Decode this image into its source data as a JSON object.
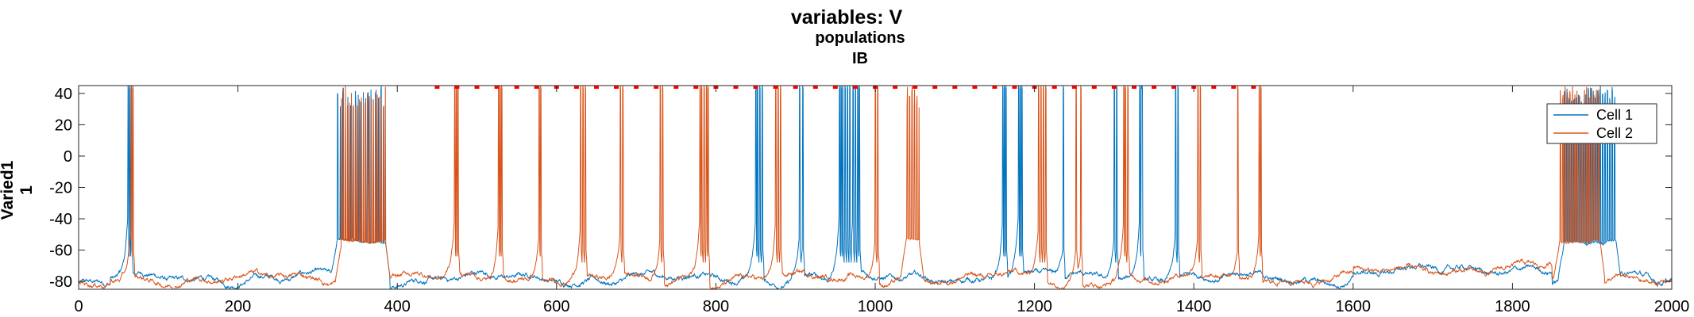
{
  "chart_data": {
    "type": "line",
    "title": "variables: V",
    "subtitle": "populations",
    "subtitle2": "IB",
    "xlabel": "",
    "ylabel": "Varied1",
    "ylabel2": "1",
    "xlim": [
      0,
      2000
    ],
    "ylim": [
      -85,
      45
    ],
    "xticks": [
      0,
      200,
      400,
      600,
      800,
      1000,
      1200,
      1400,
      1600,
      1800,
      2000
    ],
    "yticks": [
      40,
      20,
      0,
      -20,
      -40,
      -60,
      -80
    ],
    "grid": false,
    "legend_position": "top-right",
    "baseline_mV": -78,
    "spike_peak_mV": 45,
    "burst_plateau_mV": -54,
    "series": [
      {
        "name": "Cell 1",
        "color": "#0072BD",
        "spike_times_ms": [
          62,
          64,
          66,
          850,
          852,
          855,
          858,
          905,
          909,
          955,
          957,
          959,
          962,
          965,
          968,
          972,
          975,
          978,
          980,
          1160,
          1162,
          1164,
          1180,
          1182,
          1184,
          1236,
          1300,
          1303,
          1332,
          1334,
          1335,
          1377,
          1380
        ],
        "bursts": [
          [
            325,
            385,
            3.2
          ],
          [
            1865,
            1930,
            3.0
          ]
        ]
      },
      {
        "name": "Cell 2",
        "color": "#D95319",
        "spike_times_ms": [
          66,
          68,
          472,
          474,
          476,
          527,
          529,
          531,
          578,
          580,
          630,
          633,
          636,
          680,
          683,
          730,
          733,
          780,
          782,
          785,
          788,
          790,
          875,
          878,
          881,
          1000,
          1003,
          1050,
          1205,
          1208,
          1211,
          1214,
          1252,
          1258,
          1312,
          1314,
          1317,
          1405,
          1408,
          1455,
          1482,
          1484
        ],
        "bursts": [
          [
            330,
            385,
            2.5
          ],
          [
            1040,
            1055,
            3.0
          ],
          [
            1860,
            1910,
            3.0
          ]
        ]
      }
    ],
    "markers": {
      "color": "#ff0000",
      "y": 44,
      "x": [
        450,
        475,
        500,
        525,
        550,
        575,
        600,
        625,
        650,
        675,
        700,
        725,
        750,
        775,
        800,
        825,
        850,
        875,
        900,
        925,
        950,
        975,
        1000,
        1025,
        1050,
        1075,
        1100,
        1125,
        1150,
        1175,
        1200,
        1225,
        1250,
        1275,
        1300,
        1325,
        1350,
        1375,
        1400,
        1425,
        1450,
        1475
      ]
    }
  }
}
